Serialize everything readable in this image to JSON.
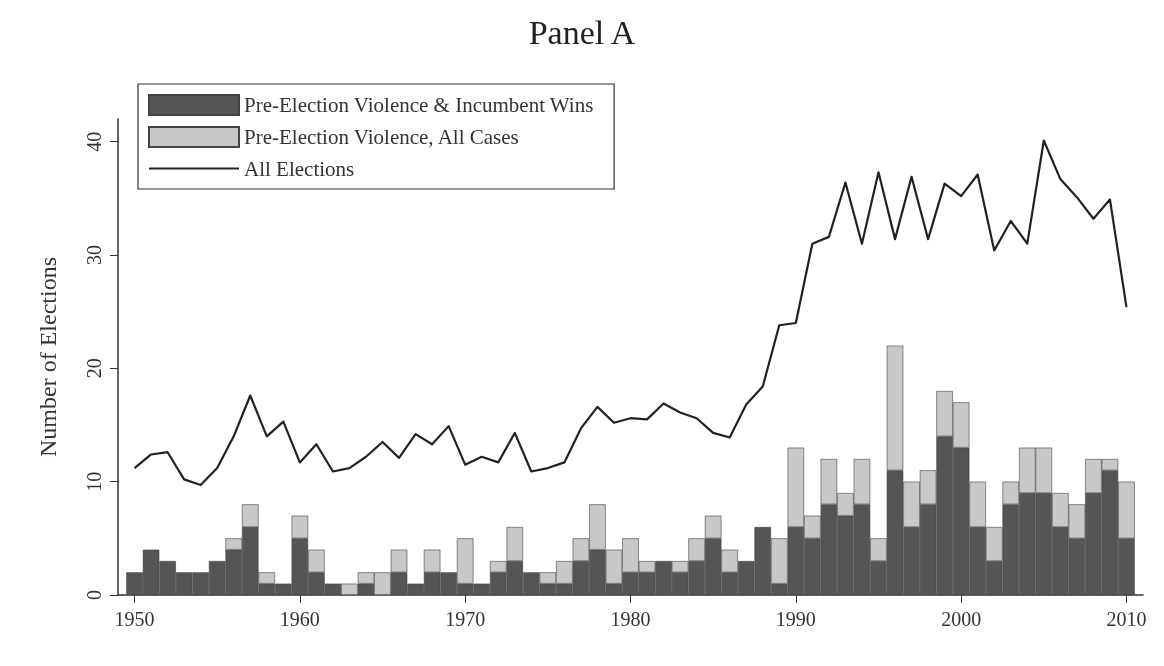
{
  "chart_data": {
    "type": "bar",
    "title": "Panel A",
    "ylabel": "Number of Elections",
    "stacked": true,
    "x": [
      1950,
      1951,
      1952,
      1953,
      1954,
      1955,
      1956,
      1957,
      1958,
      1959,
      1960,
      1961,
      1962,
      1963,
      1964,
      1965,
      1966,
      1967,
      1968,
      1969,
      1970,
      1971,
      1972,
      1973,
      1974,
      1975,
      1976,
      1977,
      1978,
      1979,
      1980,
      1981,
      1982,
      1983,
      1984,
      1985,
      1986,
      1987,
      1988,
      1989,
      1990,
      1991,
      1992,
      1993,
      1994,
      1995,
      1996,
      1997,
      1998,
      1999,
      2000,
      2001,
      2002,
      2003,
      2004,
      2005,
      2006,
      2007,
      2008,
      2009,
      2010
    ],
    "series": [
      {
        "name": "Pre-Election Violence & Incumbent Wins",
        "color": "#555555",
        "values": [
          2,
          4,
          3,
          2,
          2,
          3,
          4,
          6,
          1,
          1,
          5,
          2,
          1,
          0,
          1,
          0,
          2,
          1,
          2,
          2,
          1,
          1,
          2,
          3,
          2,
          1,
          1,
          3,
          4,
          1,
          2,
          2,
          3,
          2,
          3,
          5,
          2,
          3,
          6,
          1,
          6,
          5,
          8,
          7,
          8,
          3,
          11,
          6,
          8,
          14,
          13,
          6,
          3,
          8,
          9,
          9,
          6,
          5,
          9,
          11,
          5
        ]
      },
      {
        "name": "Pre-Election Violence, All Cases",
        "color": "#c8c8c8",
        "values": [
          0,
          0,
          0,
          0,
          0,
          0,
          1,
          2,
          1,
          0,
          2,
          2,
          0,
          1,
          1,
          2,
          2,
          0,
          2,
          0,
          4,
          0,
          1,
          3,
          0,
          1,
          2,
          2,
          4,
          3,
          3,
          1,
          0,
          1,
          2,
          2,
          2,
          0,
          0,
          4,
          7,
          2,
          4,
          2,
          4,
          2,
          11,
          4,
          3,
          4,
          4,
          4,
          3,
          2,
          4,
          4,
          3,
          3,
          3,
          1,
          5
        ]
      },
      {
        "name": "All Elections",
        "type": "line",
        "color": "#222222",
        "values": [
          11.2,
          12.4,
          12.6,
          10.2,
          9.7,
          11.2,
          14.0,
          17.6,
          14.0,
          15.3,
          11.7,
          13.3,
          10.9,
          11.2,
          12.2,
          13.5,
          12.1,
          14.2,
          13.3,
          14.9,
          11.5,
          12.2,
          11.7,
          14.3,
          10.9,
          11.2,
          11.7,
          14.7,
          16.6,
          15.2,
          15.6,
          15.5,
          16.9,
          16.1,
          15.6,
          14.3,
          13.9,
          16.8,
          18.4,
          23.8,
          24.0,
          31.0,
          31.6,
          36.4,
          31.0,
          37.3,
          31.4,
          36.9,
          31.4,
          36.3,
          35.2,
          37.1,
          30.4,
          33.0,
          31.0,
          40.1,
          36.7,
          35.1,
          33.2,
          34.9,
          25.4
        ]
      }
    ],
    "xlim": [
      1949,
      2011
    ],
    "xticks": [
      {
        "value": 1950,
        "label": "1950"
      },
      {
        "value": 1960,
        "label": "1960"
      },
      {
        "value": 1970,
        "label": "1970"
      },
      {
        "value": 1980,
        "label": "1980"
      },
      {
        "value": 1990,
        "label": "1990"
      },
      {
        "value": 2000,
        "label": "2000"
      },
      {
        "value": 2010,
        "label": "2010"
      }
    ],
    "ylim": [
      0,
      42
    ],
    "yticks": [
      0,
      10,
      20,
      30,
      40
    ],
    "grid": false,
    "legend": "top left",
    "marker": "none",
    "line_style": "solid"
  }
}
